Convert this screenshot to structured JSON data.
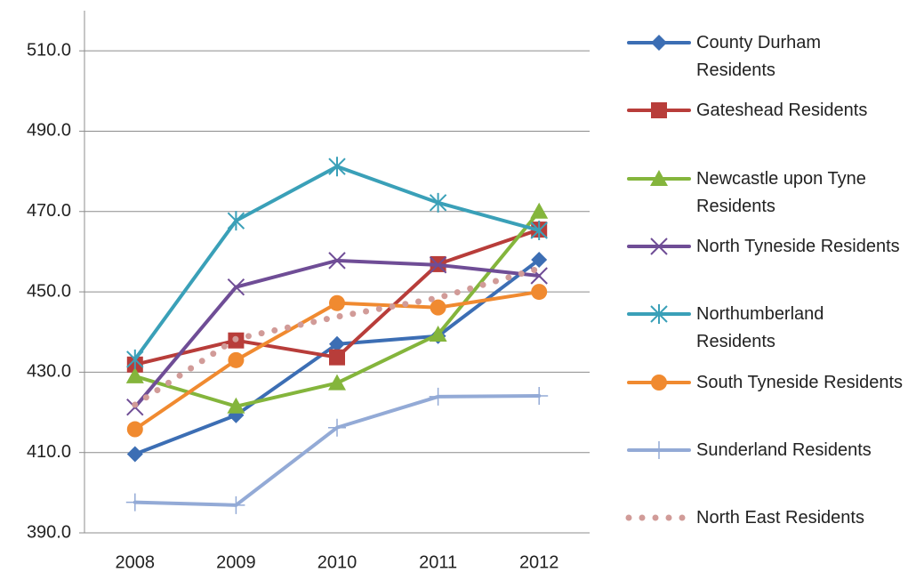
{
  "chart_data": {
    "type": "line",
    "categories": [
      "2008",
      "2009",
      "2010",
      "2011",
      "2012"
    ],
    "ylim": [
      390,
      520
    ],
    "yticks": [
      {
        "value": 390,
        "label": "390.0"
      },
      {
        "value": 410,
        "label": "410.0"
      },
      {
        "value": 430,
        "label": "430.0"
      },
      {
        "value": 450,
        "label": "450.0"
      },
      {
        "value": 470,
        "label": "470.0"
      },
      {
        "value": 490,
        "label": "490.0"
      },
      {
        "value": 510,
        "label": "510.0"
      }
    ],
    "grid": true,
    "legend": "right",
    "series": [
      {
        "name": "County Durham Residents",
        "color": "#3c6eb4",
        "marker": "diamond",
        "values": [
          409.6,
          419.3,
          437.0,
          439.0,
          458.0
        ]
      },
      {
        "name": "Gateshead Residents",
        "color": "#b83d3a",
        "marker": "square",
        "values": [
          431.9,
          437.9,
          433.7,
          456.9,
          465.5
        ]
      },
      {
        "name": "Newcastle upon Tyne Residents",
        "color": "#84b53c",
        "marker": "triangle",
        "values": [
          429.0,
          421.5,
          427.3,
          439.4,
          470.0
        ]
      },
      {
        "name": "North Tyneside Residents",
        "color": "#6f4d96",
        "marker": "x",
        "values": [
          421.3,
          451.2,
          457.8,
          456.7,
          454.0
        ]
      },
      {
        "name": "Northumberland Residents",
        "color": "#3aa0b8",
        "marker": "star",
        "values": [
          433.2,
          467.7,
          481.2,
          472.2,
          465.3
        ]
      },
      {
        "name": "South Tyneside Residents",
        "color": "#f08a30",
        "marker": "circle",
        "values": [
          415.8,
          433.0,
          447.2,
          446.1,
          450.0
        ]
      },
      {
        "name": "Sunderland Residents",
        "color": "#93aad6",
        "marker": "plus",
        "values": [
          397.6,
          396.9,
          416.2,
          423.9,
          424.1
        ]
      },
      {
        "name": "North East Residents",
        "color": "#d19b98",
        "marker": "dots",
        "values": [
          421.9,
          438.3,
          443.8,
          448.5,
          455.8
        ]
      }
    ]
  }
}
